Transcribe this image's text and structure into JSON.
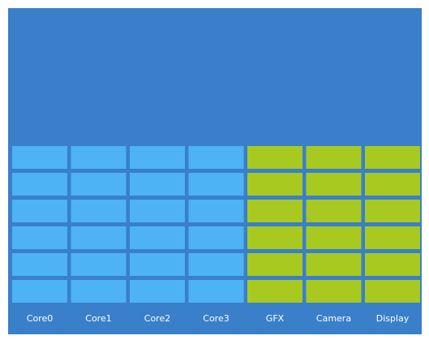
{
  "columns": [
    {
      "label": "Core0",
      "color": "#4db3f5"
    },
    {
      "label": "Core1",
      "color": "#4db3f5"
    },
    {
      "label": "Core2",
      "color": "#4db3f5"
    },
    {
      "label": "Core3",
      "color": "#4db3f5"
    },
    {
      "label": "GFX",
      "color": "#a8c920"
    },
    {
      "label": "Camera",
      "color": "#a8c920"
    },
    {
      "label": "Display",
      "color": "#a8c920"
    }
  ]
}
